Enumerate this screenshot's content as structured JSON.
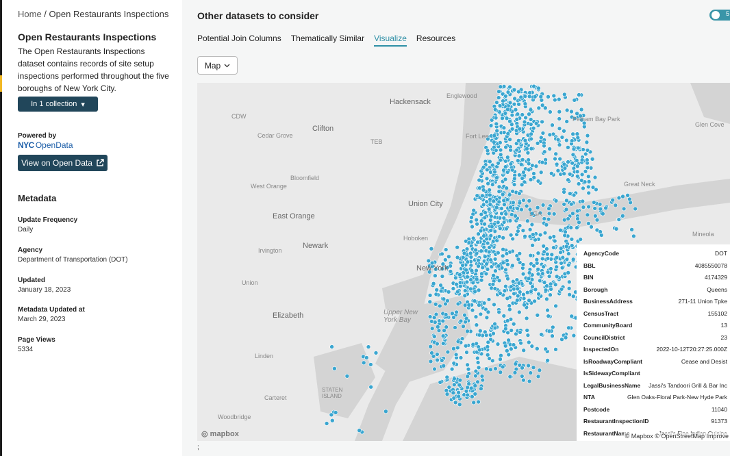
{
  "sidebar": {
    "breadcrumb_home": "Home",
    "breadcrumb_sep": " / ",
    "breadcrumb_current": "Open Restaurants Inspections",
    "title": "Open Restaurants Inspections",
    "description": "The Open Restaurants Inspections dataset contains records of site setup inspections performed throughout the five boroughs of New York City.",
    "collection_button": "In 1 collection",
    "powered_by": "Powered by",
    "nyc_logo_text": "NYC",
    "opendata_text": "OpenData",
    "view_button": "View on Open Data",
    "metadata_heading": "Metadata",
    "metadata": [
      {
        "label": "Update Frequency",
        "value": "Daily"
      },
      {
        "label": "Agency",
        "value": "Department of Transportation (DOT)"
      },
      {
        "label": "Updated",
        "value": "January 18, 2023"
      },
      {
        "label": "Metadata Updated at",
        "value": "March 29, 2023"
      },
      {
        "label": "Page Views",
        "value": "5334"
      }
    ]
  },
  "main": {
    "title": "Other datasets to consider",
    "toggle_label": "5",
    "tabs": [
      "Potential Join Columns",
      "Thematically Similar",
      "Visualize",
      "Resources"
    ],
    "active_tab": "Visualize",
    "view_select": "Map",
    "footer_text": ";"
  },
  "map": {
    "place_labels": [
      {
        "text": "Hackensack"
      },
      {
        "text": "Englewood"
      },
      {
        "text": "CDW"
      },
      {
        "text": "Clifton"
      },
      {
        "text": "Cedar Grove"
      },
      {
        "text": "TEB"
      },
      {
        "text": "Fort Lee"
      },
      {
        "text": "Pelham Bay Park"
      },
      {
        "text": "Glen Cove"
      },
      {
        "text": "Bloomfield"
      },
      {
        "text": "West Orange"
      },
      {
        "text": "Great Neck"
      },
      {
        "text": "Union City"
      },
      {
        "text": "LGA"
      },
      {
        "text": "East Orange"
      },
      {
        "text": "Mineola"
      },
      {
        "text": "Hoboken"
      },
      {
        "text": "Newark"
      },
      {
        "text": "Irvington"
      },
      {
        "text": "New York"
      },
      {
        "text": "Union"
      },
      {
        "text": "Elizabeth"
      },
      {
        "text": "Upper New York Bay"
      },
      {
        "text": "Linden"
      },
      {
        "text": "Carteret"
      },
      {
        "text": "STATEN ISLAND"
      },
      {
        "text": "Woodbridge"
      }
    ],
    "mapbox_logo": "mapbox",
    "attribution": "© Mapbox © OpenStreetMap Improve",
    "popup": [
      {
        "key": "AgencyCode",
        "value": "DOT"
      },
      {
        "key": "BBL",
        "value": "4085550078"
      },
      {
        "key": "BIN",
        "value": "4174329"
      },
      {
        "key": "Borough",
        "value": "Queens"
      },
      {
        "key": "BusinessAddress",
        "value": "271-11 Union Tpke"
      },
      {
        "key": "CensusTract",
        "value": "155102"
      },
      {
        "key": "CommunityBoard",
        "value": "13"
      },
      {
        "key": "CouncilDistrict",
        "value": "23"
      },
      {
        "key": "InspectedOn",
        "value": "2022-10-12T20:27:25.000Z"
      },
      {
        "key": "IsRoadwayCompliant",
        "value": "Cease and Desist"
      },
      {
        "key": "IsSidewayCompliant",
        "value": ""
      },
      {
        "key": "LegalBusinessName",
        "value": "Jassi's Tandoori Grill & Bar Inc"
      },
      {
        "key": "NTA",
        "value": "Glen Oaks-Floral Park-New Hyde Park"
      },
      {
        "key": "Postcode",
        "value": "11040"
      },
      {
        "key": "RestaurantInspectionID",
        "value": "91373"
      },
      {
        "key": "RestaurantName",
        "value": "Jassi's Fine Indian Cuisine"
      }
    ],
    "colors": {
      "point": "#3aa6d0",
      "water": "#d4d4d4",
      "land": "#eaeaea",
      "accent": "#2e8fa6",
      "button": "#21465a"
    }
  }
}
